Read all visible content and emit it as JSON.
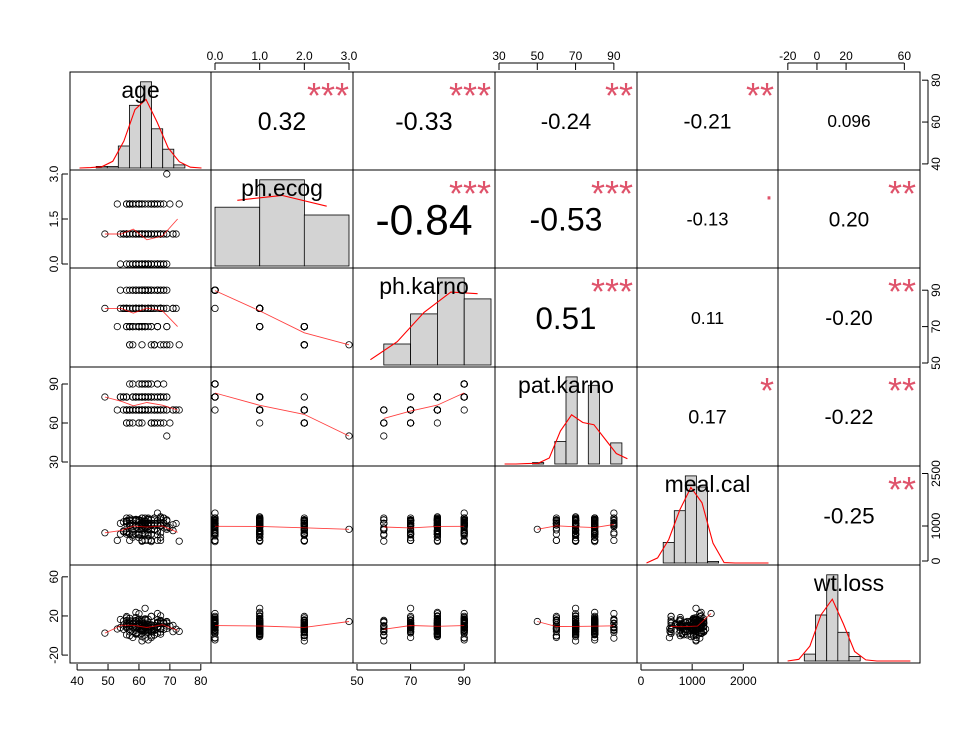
{
  "chart_data": {
    "type": "scatter",
    "variables": [
      "age",
      "ph.ecog",
      "ph.karno",
      "pat.karno",
      "meal.cal",
      "wt.loss"
    ],
    "colors": {
      "stars": "#df536b",
      "smooth": "#ff0000",
      "hist_fill": "#d3d3d3",
      "point": "#000000"
    },
    "correlations": [
      {
        "row": 0,
        "col": 1,
        "r": "0.32",
        "stars": "***"
      },
      {
        "row": 0,
        "col": 2,
        "r": "-0.33",
        "stars": "***"
      },
      {
        "row": 0,
        "col": 3,
        "r": "-0.24",
        "stars": "**"
      },
      {
        "row": 0,
        "col": 4,
        "r": "-0.21",
        "stars": "**"
      },
      {
        "row": 0,
        "col": 5,
        "r": "0.096",
        "stars": ""
      },
      {
        "row": 1,
        "col": 2,
        "r": "-0.84",
        "stars": "***"
      },
      {
        "row": 1,
        "col": 3,
        "r": "-0.53",
        "stars": "***"
      },
      {
        "row": 1,
        "col": 4,
        "r": "-0.13",
        "stars": "·"
      },
      {
        "row": 1,
        "col": 5,
        "r": "0.20",
        "stars": "**"
      },
      {
        "row": 2,
        "col": 3,
        "r": "0.51",
        "stars": "***"
      },
      {
        "row": 2,
        "col": 4,
        "r": "0.11",
        "stars": ""
      },
      {
        "row": 2,
        "col": 5,
        "r": "-0.20",
        "stars": "**"
      },
      {
        "row": 3,
        "col": 4,
        "r": "0.17",
        "stars": "*"
      },
      {
        "row": 3,
        "col": 5,
        "r": "-0.22",
        "stars": "**"
      },
      {
        "row": 4,
        "col": 5,
        "r": "-0.25",
        "stars": "**"
      }
    ],
    "axes": {
      "top": [
        {
          "col": 1,
          "ticks": [
            "0.0",
            "1.0",
            "2.0",
            "3.0"
          ],
          "values": [
            0,
            1,
            2,
            3
          ],
          "range": [
            0,
            3
          ]
        },
        {
          "col": 3,
          "ticks": [
            "30",
            "50",
            "70",
            "90"
          ],
          "values": [
            30,
            50,
            70,
            90
          ],
          "range": [
            30,
            100
          ]
        },
        {
          "col": 5,
          "ticks": [
            "-20",
            "0",
            "20",
            "60"
          ],
          "values": [
            -20,
            0,
            20,
            60
          ],
          "range": [
            -24,
            68
          ]
        }
      ],
      "bottom": [
        {
          "col": 0,
          "ticks": [
            "40",
            "50",
            "60",
            "70",
            "80"
          ],
          "values": [
            40,
            50,
            60,
            70,
            80
          ],
          "range": [
            39,
            82
          ]
        },
        {
          "col": 2,
          "ticks": [
            "50",
            "70",
            "90"
          ],
          "values": [
            50,
            70,
            90
          ],
          "range": [
            50,
            100
          ]
        },
        {
          "col": 4,
          "ticks": [
            "0",
            "1000",
            "2000"
          ],
          "values": [
            0,
            1000,
            2000
          ],
          "range": [
            0,
            2600
          ]
        }
      ],
      "left": [
        {
          "row": 1,
          "ticks": [
            "0.0",
            "1.5",
            "3.0"
          ],
          "values": [
            0,
            1.5,
            3
          ],
          "range": [
            0,
            3
          ]
        },
        {
          "row": 3,
          "ticks": [
            "30",
            "60",
            "90"
          ],
          "values": [
            30,
            60,
            90
          ],
          "range": [
            30,
            100
          ]
        },
        {
          "row": 5,
          "ticks": [
            "-20",
            "20",
            "60"
          ],
          "values": [
            -20,
            20,
            60
          ],
          "range": [
            -24,
            68
          ]
        }
      ],
      "right": [
        {
          "row": 0,
          "ticks": [
            "40",
            "60",
            "80"
          ],
          "values": [
            40,
            60,
            80
          ],
          "range": [
            39,
            82
          ]
        },
        {
          "row": 2,
          "ticks": [
            "50",
            "70",
            "90"
          ],
          "values": [
            50,
            70,
            90
          ],
          "range": [
            50,
            100
          ]
        },
        {
          "row": 4,
          "ticks": [
            "0",
            "1000",
            "2500"
          ],
          "values": [
            0,
            1000,
            2500
          ],
          "range": [
            0,
            2600
          ]
        }
      ]
    }
  }
}
